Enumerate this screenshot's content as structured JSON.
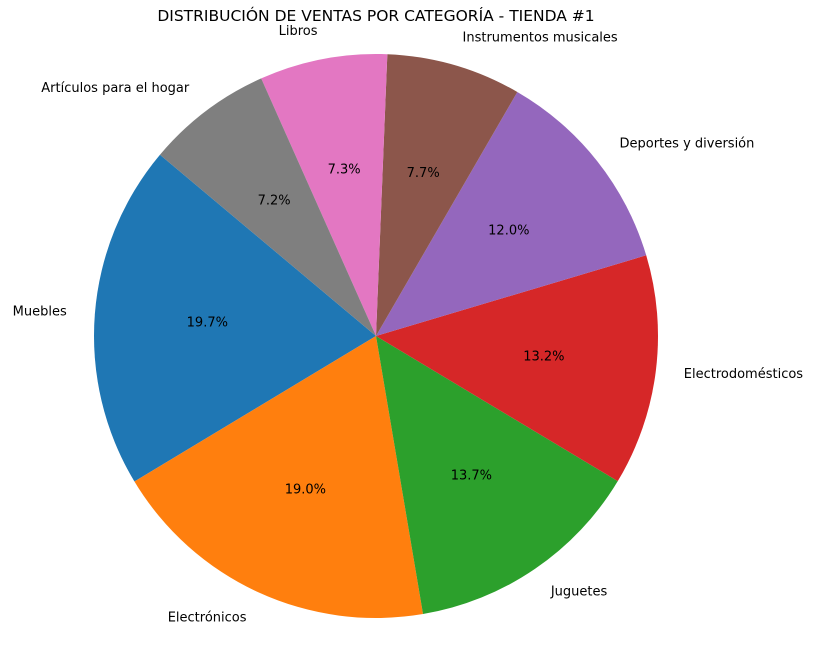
{
  "chart_data": {
    "type": "pie",
    "title": "DISTRIBUCIÓN DE VENTAS POR CATEGORÍA - TIENDA #1",
    "start_angle_deg": 140,
    "direction": "counterclockwise",
    "slices": [
      {
        "label": "Muebles",
        "percent": 19.7,
        "percent_label": "19.7%",
        "color": "#1f77b4"
      },
      {
        "label": "Electrónicos",
        "percent": 19.0,
        "percent_label": "19.0%",
        "color": "#ff7f0e"
      },
      {
        "label": "Juguetes",
        "percent": 13.7,
        "percent_label": "13.7%",
        "color": "#2ca02c"
      },
      {
        "label": "Electrodomésticos",
        "percent": 13.2,
        "percent_label": "13.2%",
        "color": "#d62728"
      },
      {
        "label": "Deportes y diversión",
        "percent": 12.0,
        "percent_label": "12.0%",
        "color": "#9467bd"
      },
      {
        "label": "Instrumentos musicales",
        "percent": 7.7,
        "percent_label": "7.7%",
        "color": "#8c564b"
      },
      {
        "label": "Libros",
        "percent": 7.3,
        "percent_label": "7.3%",
        "color": "#e377c2"
      },
      {
        "label": "Artículos para el hogar",
        "percent": 7.2,
        "percent_label": "7.2%",
        "color": "#7f7f7f"
      }
    ]
  }
}
